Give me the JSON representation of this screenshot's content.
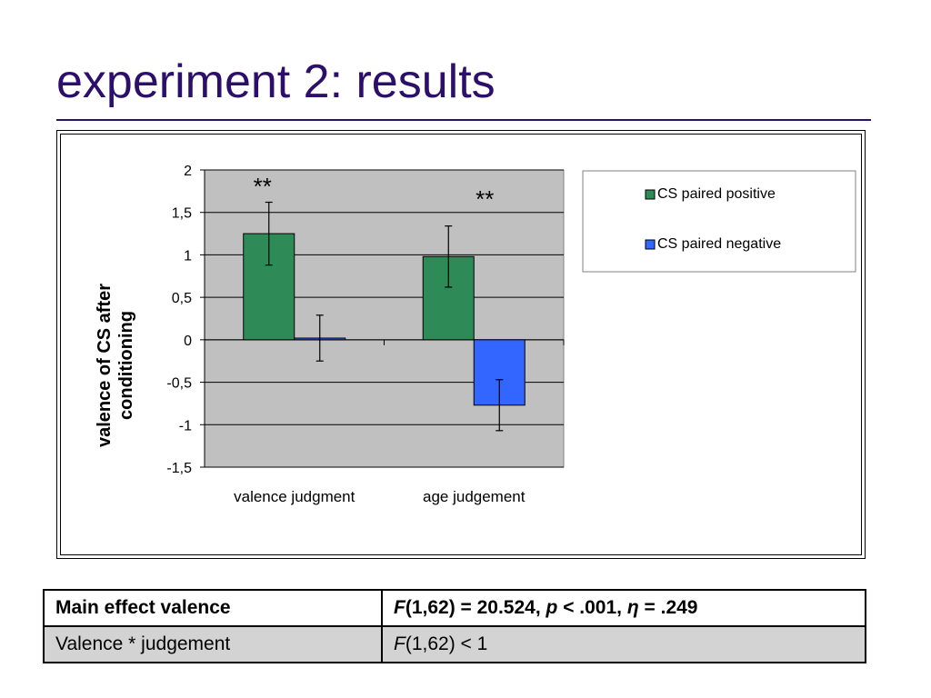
{
  "slide": {
    "title": "experiment 2: results"
  },
  "chart_data": {
    "type": "bar",
    "categories": [
      "valence judgment",
      "age judgement"
    ],
    "series": [
      {
        "name": "CS paired positive",
        "color": "#2e8b57",
        "values": [
          1.25,
          0.98
        ],
        "error": [
          0.37,
          0.36
        ]
      },
      {
        "name": "CS paired negative",
        "color": "#3366ff",
        "values": [
          0.02,
          -0.77
        ],
        "error": [
          0.27,
          0.3
        ]
      }
    ],
    "ylabel_lines": [
      "valence of CS after",
      "conditioning"
    ],
    "ylim": [
      -1.5,
      2
    ],
    "yticks": [
      2,
      1.5,
      1,
      0.5,
      0,
      -0.5,
      -1,
      -1.5
    ],
    "ytick_labels": [
      "2",
      "1,5",
      "1",
      "0,5",
      "0",
      "-0,5",
      "-1",
      "-1,5"
    ],
    "significance": [
      "**",
      "**"
    ],
    "grid": true,
    "plot_background": "#c0c0c0",
    "legend_position": "right"
  },
  "stats_table": {
    "row1": {
      "label": "Main effect valence",
      "F": "F",
      "df": "(1,62) = 20.524, ",
      "p": "p",
      "p_val": " < .001, ",
      "eta": "η",
      "eta_val": " = .249"
    },
    "row2": {
      "label": "Valence * judgement",
      "F": "F",
      "rest": "(1,62) < 1"
    }
  }
}
